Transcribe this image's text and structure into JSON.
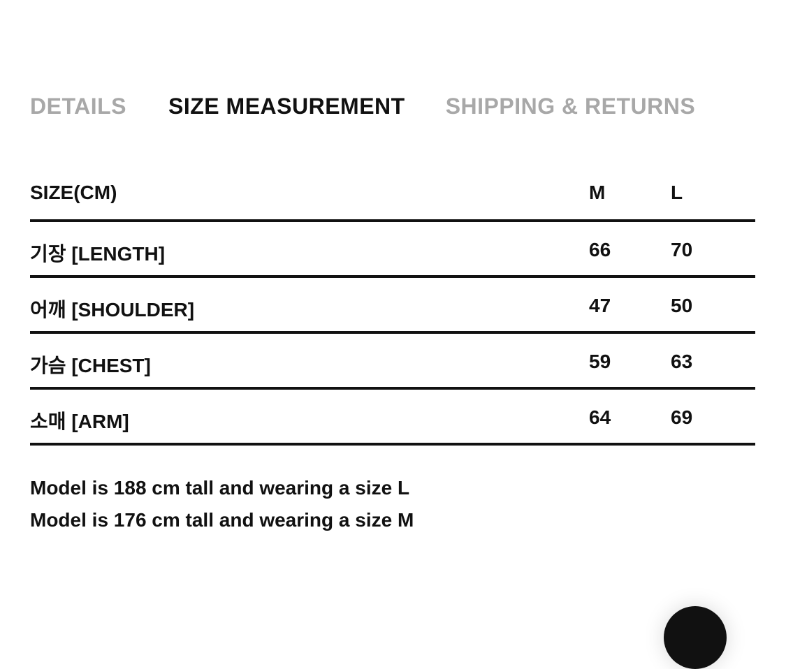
{
  "tabs": [
    {
      "label": "DETAILS",
      "active": false
    },
    {
      "label": "SIZE MEASUREMENT",
      "active": true
    },
    {
      "label": "SHIPPING & RETURNS",
      "active": false
    }
  ],
  "size_table": {
    "headers": [
      "SIZE(CM)",
      "M",
      "L"
    ],
    "rows": [
      [
        "기장 [LENGTH]",
        "66",
        "70"
      ],
      [
        "어깨 [SHOULDER]",
        "47",
        "50"
      ],
      [
        "가슴 [CHEST]",
        "59",
        "63"
      ],
      [
        "소매 [ARM]",
        "64",
        "69"
      ]
    ]
  },
  "model_notes": [
    "Model is 188 cm tall and wearing a size L",
    "Model is 176 cm tall and wearing a size M"
  ],
  "colors": {
    "text": "#111111",
    "inactive_tab": "#a8a8a8"
  }
}
